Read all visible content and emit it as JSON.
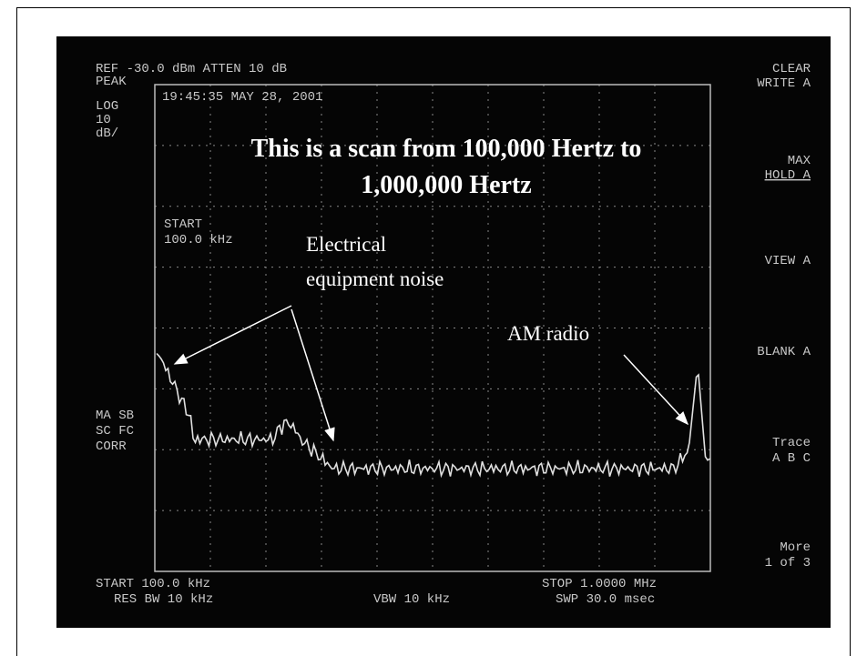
{
  "screen": {
    "ref_line": "REF -30.0 dBm  ATTEN 10 dB",
    "left_labels": [
      "PEAK",
      "LOG",
      "10",
      "dB/"
    ],
    "timestamp": "19:45:35 MAY 28, 2001",
    "start_label": [
      "START",
      "100.0 kHz"
    ],
    "left_status": [
      "MA SB",
      "SC FC",
      "CORR"
    ],
    "softkeys": [
      [
        "CLEAR",
        "WRITE A"
      ],
      [
        "MAX",
        "HOLD A"
      ],
      [
        "VIEW A"
      ],
      [
        "BLANK A"
      ],
      [
        "Trace",
        "A  B  C"
      ],
      [
        "More",
        "1 of 3"
      ]
    ],
    "footer": {
      "start": "START 100.0 kHz",
      "stop": "STOP 1.0000 MHz",
      "res_bw": "RES BW 10 kHz",
      "vbw": "VBW 10 kHz",
      "swp": "SWP 30.0 msec"
    }
  },
  "annotations": {
    "title": [
      "This is a scan from 100,000 Hertz to",
      "1,000,000 Hertz"
    ],
    "noise_label": [
      "Electrical",
      "equipment noise"
    ],
    "am_label": "AM radio"
  }
}
